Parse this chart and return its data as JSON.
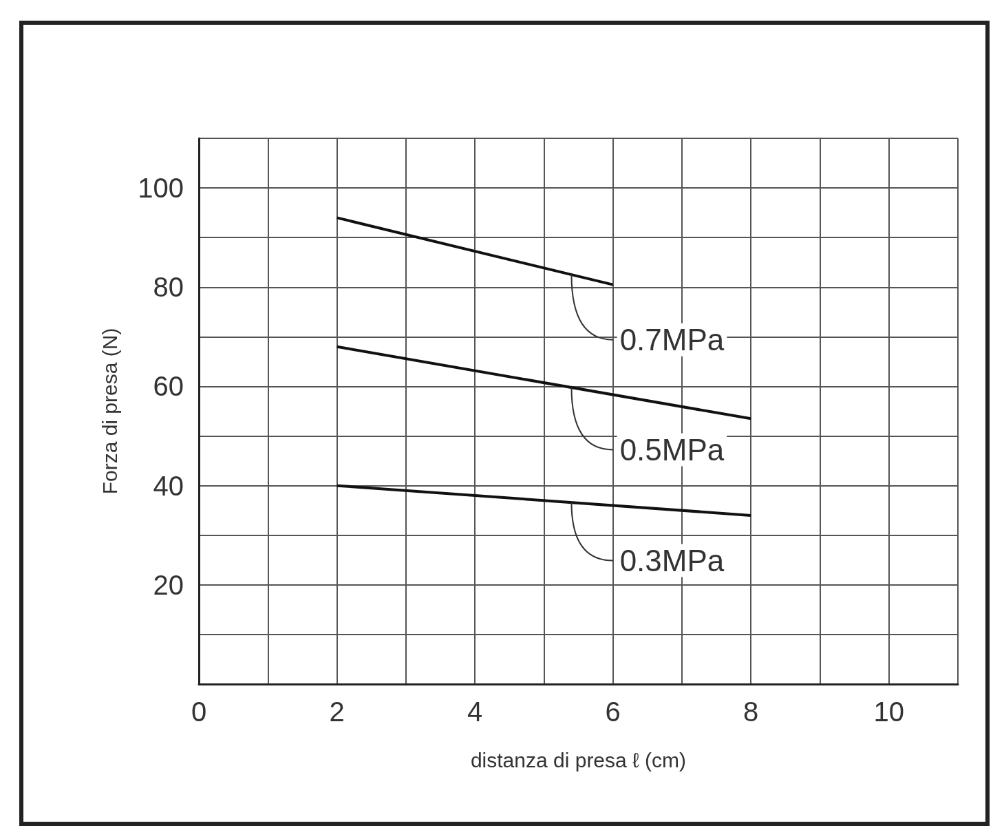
{
  "chart_data": {
    "type": "line",
    "xlabel": "distanza di presa ℓ (cm)",
    "ylabel": "Forza di presa (N)",
    "xlim": [
      0,
      11
    ],
    "xticks": [
      0,
      2,
      4,
      6,
      8,
      10
    ],
    "ylim": [
      0,
      110
    ],
    "yticks": [
      20,
      40,
      60,
      80,
      100
    ],
    "grid": true,
    "marker": "none",
    "line_style": "solid",
    "series": [
      {
        "name": "0.7MPa",
        "color": "#111111",
        "x": [
          2,
          6
        ],
        "values": [
          94,
          80.5
        ]
      },
      {
        "name": "0.5MPa",
        "color": "#111111",
        "x": [
          2,
          8
        ],
        "values": [
          68,
          53.5
        ]
      },
      {
        "name": "0.3MPa",
        "color": "#111111",
        "x": [
          2,
          8
        ],
        "values": [
          40,
          34
        ]
      }
    ]
  }
}
